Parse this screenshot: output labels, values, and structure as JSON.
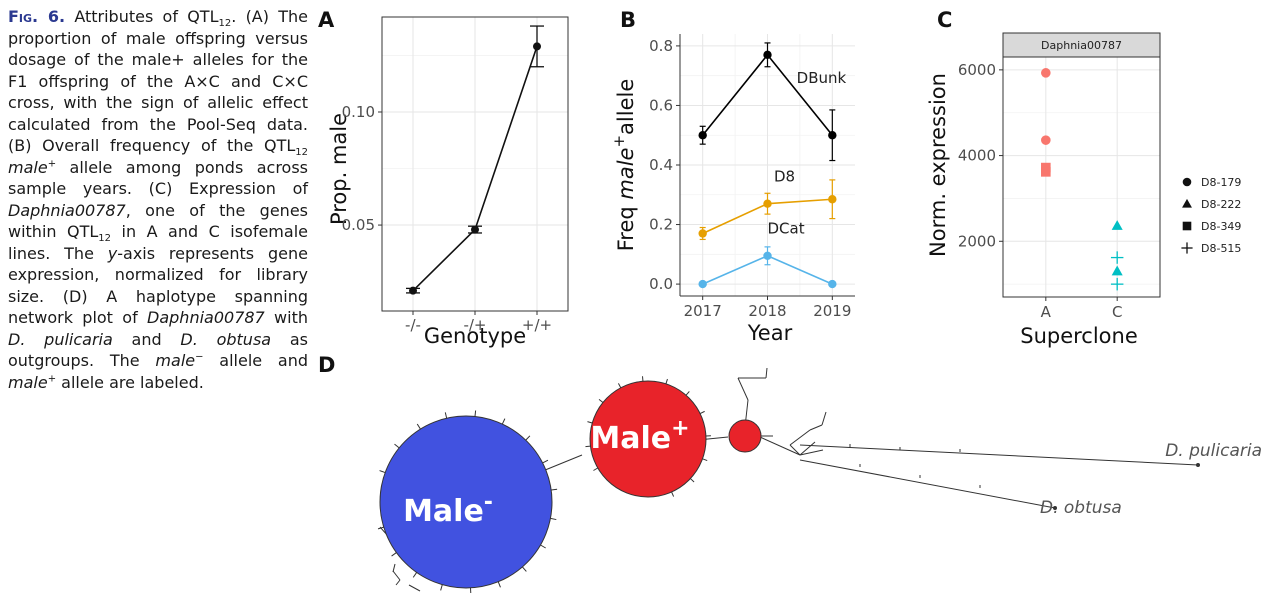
{
  "caption": {
    "segments": [
      {
        "t": "Fig. 6.",
        "s": "figlabel"
      },
      {
        "t": " Attributes of QTL"
      },
      {
        "t": "12",
        "s": "sub"
      },
      {
        "t": ". (A) The proportion of male offspring versus dosage of the male+ alleles for the F1 offspring of the A×C and C×C cross, with the sign of allelic effect calculated from the Pool-Seq data. (B) Overall frequency of the QTL"
      },
      {
        "t": "12",
        "s": "sub"
      },
      {
        "t": " "
      },
      {
        "t": "male",
        "s": "i"
      },
      {
        "t": "+",
        "s": "sup"
      },
      {
        "t": " allele among ponds across sample years. (C) Expression of "
      },
      {
        "t": "Daphnia00787",
        "s": "i"
      },
      {
        "t": ", one of the genes within QTL"
      },
      {
        "t": "12",
        "s": "sub"
      },
      {
        "t": " in A and C isofemale lines. The "
      },
      {
        "t": "y",
        "s": "i"
      },
      {
        "t": "-axis represents gene expression, normalized for library size. (D) A haplotype spanning network plot of "
      },
      {
        "t": "Daphnia00787",
        "s": "i"
      },
      {
        "t": " with "
      },
      {
        "t": "D. pulicaria",
        "s": "i"
      },
      {
        "t": " and "
      },
      {
        "t": "D. obtusa",
        "s": "i"
      },
      {
        "t": " as outgroups. The "
      },
      {
        "t": "male",
        "s": "i"
      },
      {
        "t": "−",
        "s": "sup"
      },
      {
        "t": " allele and "
      },
      {
        "t": "male",
        "s": "i"
      },
      {
        "t": "+",
        "s": "sup"
      },
      {
        "t": " allele are labeled."
      }
    ]
  },
  "chart_data": [
    {
      "panel": "A",
      "type": "line",
      "xlabel": "Genotype",
      "ylabel": "Prop. male",
      "categories": [
        "-/-",
        "-/+",
        "+/+"
      ],
      "values": [
        0.021,
        0.048,
        0.129
      ],
      "errors": [
        0.001,
        0.0015,
        0.009
      ],
      "yticks": [
        0.05,
        0.1
      ],
      "ytick_labels": [
        "0.05",
        "0.10"
      ],
      "ylim": [
        0.012,
        0.142
      ],
      "grid": true
    },
    {
      "panel": "B",
      "type": "line",
      "xlabel": "Year",
      "ylabel_parts": [
        "Freq ",
        "male",
        "+",
        "allele"
      ],
      "x": [
        2017,
        2018,
        2019
      ],
      "xtick_labels": [
        "2017",
        "2018",
        "2019"
      ],
      "yticks": [
        0.0,
        0.2,
        0.4,
        0.6,
        0.8
      ],
      "ytick_labels": [
        "0.0",
        "0.2",
        "0.4",
        "0.6",
        "0.8"
      ],
      "ylim": [
        -0.04,
        0.84
      ],
      "grid": true,
      "series": [
        {
          "name": "DBunk",
          "color": "#000000",
          "values": [
            0.5,
            0.77,
            0.5
          ],
          "errors": [
            0.03,
            0.04,
            0.085
          ]
        },
        {
          "name": "D8",
          "color": "#E69F00",
          "values": [
            0.17,
            0.27,
            0.285
          ],
          "errors": [
            0.02,
            0.035,
            0.065
          ]
        },
        {
          "name": "DCat",
          "color": "#56B4E9",
          "values": [
            0.0,
            0.095,
            0.0
          ],
          "errors": [
            0.0,
            0.03,
            0.0
          ]
        }
      ]
    },
    {
      "panel": "C",
      "type": "scatter",
      "xlabel": "Superclone",
      "ylabel": "Norm. expression",
      "facet_title": "Daphnia00787",
      "categories": [
        "A",
        "C"
      ],
      "colors": {
        "A": "#F8766D",
        "C": "#00BFC4"
      },
      "yticks": [
        2000,
        4000,
        6000
      ],
      "ytick_labels": [
        "2000",
        "4000",
        "6000"
      ],
      "ylim": [
        700,
        6300
      ],
      "grid": true,
      "legend_position": "right",
      "legend": [
        {
          "label": "D8-179",
          "shape": "circle"
        },
        {
          "label": "D8-222",
          "shape": "triangle"
        },
        {
          "label": "D8-349",
          "shape": "square"
        },
        {
          "label": "D8-515",
          "shape": "plus"
        }
      ],
      "points": [
        {
          "group": "A",
          "y": 5930,
          "shape": "circle"
        },
        {
          "group": "A",
          "y": 4360,
          "shape": "circle"
        },
        {
          "group": "A",
          "y": 3720,
          "shape": "square"
        },
        {
          "group": "A",
          "y": 3620,
          "shape": "square"
        },
        {
          "group": "C",
          "y": 2360,
          "shape": "triangle"
        },
        {
          "group": "C",
          "y": 1300,
          "shape": "triangle"
        },
        {
          "group": "C",
          "y": 1620,
          "shape": "plus"
        },
        {
          "group": "C",
          "y": 1000,
          "shape": "plus"
        }
      ]
    }
  ],
  "network": {
    "panel": "D",
    "male_minus": {
      "label": "Male",
      "sup": "-",
      "color": "#4152E0"
    },
    "male_plus": {
      "label": "Male",
      "sup": "+",
      "color": "#E8232A"
    },
    "outgroups": [
      "D. pulicaria",
      "D. obtusa"
    ]
  },
  "panel_labels": [
    "A",
    "B",
    "C",
    "D"
  ]
}
